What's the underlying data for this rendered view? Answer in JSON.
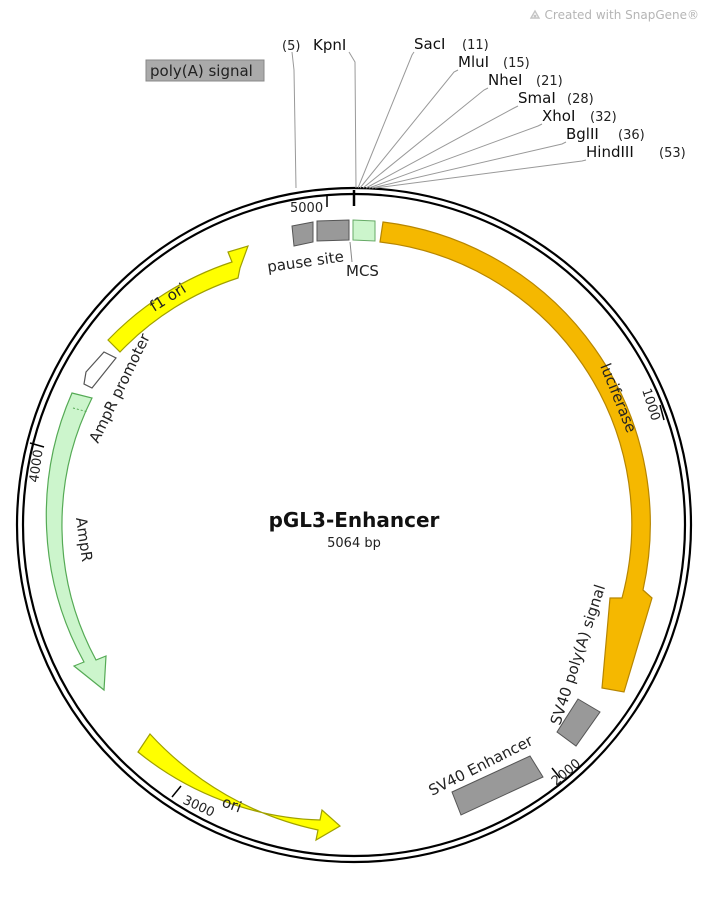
{
  "credit": {
    "text": "Created with SnapGene®",
    "icon": "snapgene-logo-icon"
  },
  "plasmid": {
    "name": "pGL3-Enhancer",
    "size": "5064 bp"
  },
  "ticks": [
    {
      "label": "1000"
    },
    {
      "label": "2000"
    },
    {
      "label": "3000"
    },
    {
      "label": "4000"
    },
    {
      "label": "5000"
    }
  ],
  "sites": [
    {
      "name": "KpnI",
      "pos": "(5)"
    },
    {
      "name": "SacI",
      "pos": "(11)"
    },
    {
      "name": "MluI",
      "pos": "(15)"
    },
    {
      "name": "NheI",
      "pos": "(21)"
    },
    {
      "name": "SmaI",
      "pos": "(28)"
    },
    {
      "name": "XhoI",
      "pos": "(32)"
    },
    {
      "name": "BglII",
      "pos": "(36)"
    },
    {
      "name": "HindIII",
      "pos": "(53)"
    }
  ],
  "features": {
    "poly_a": "poly(A) signal",
    "pause": "pause site",
    "mcs": "MCS",
    "luciferase": "luciferase",
    "sv40_polya": "SV40 poly(A) signal",
    "sv40_enh": "SV40 Enhancer",
    "ori": "ori",
    "ampr": "AmpR",
    "ampr_promoter": "AmpR promoter",
    "f1_ori": "f1 ori"
  },
  "colors": {
    "luciferase": "#f5b800",
    "yellow_feature": "#ffff00",
    "ampr": "#ccf5cc",
    "gray_feature": "#999999",
    "mcs": "#ccf5cc",
    "backbone": "#000000"
  }
}
